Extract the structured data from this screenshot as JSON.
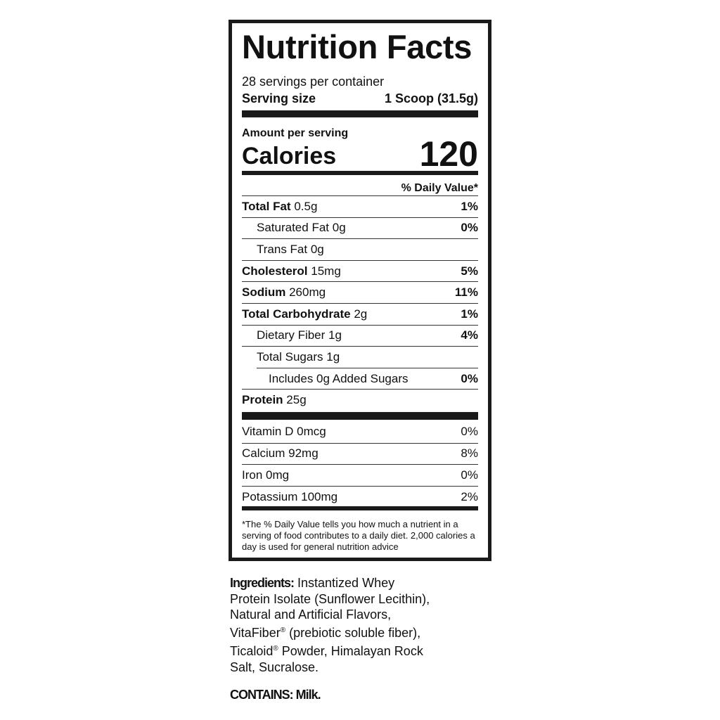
{
  "label": {
    "title": "Nutrition Facts",
    "servings_per_container": "28 servings per container",
    "serving_size_label": "Serving size",
    "serving_size_value": "1 Scoop (31.5g)",
    "amount_per_serving": "Amount per serving",
    "calories_label": "Calories",
    "calories_value": "120",
    "daily_value_header": "% Daily Value*",
    "nutrients": [
      {
        "name": "Total Fat",
        "amount": "0.5g",
        "dv": "1%",
        "bold": true,
        "indent": 0
      },
      {
        "name": "Saturated Fat",
        "amount": "0g",
        "dv": "0%",
        "bold": false,
        "indent": 1
      },
      {
        "name": "Trans Fat",
        "amount": "0g",
        "dv": "",
        "bold": false,
        "indent": 1
      },
      {
        "name": "Cholesterol",
        "amount": "15mg",
        "dv": "5%",
        "bold": true,
        "indent": 0
      },
      {
        "name": "Sodium",
        "amount": "260mg",
        "dv": "11%",
        "bold": true,
        "indent": 0
      },
      {
        "name": "Total Carbohydrate",
        "amount": "2g",
        "dv": "1%",
        "bold": true,
        "indent": 0
      },
      {
        "name": "Dietary Fiber",
        "amount": "1g",
        "dv": "4%",
        "bold": false,
        "indent": 1
      },
      {
        "name": "Total Sugars",
        "amount": "1g",
        "dv": "",
        "bold": false,
        "indent": 1
      },
      {
        "name": "Includes 0g Added Sugars",
        "amount": "",
        "dv": "0%",
        "bold": false,
        "indent": 2
      },
      {
        "name": "Protein",
        "amount": "25g",
        "dv": "",
        "bold": true,
        "indent": 0
      }
    ],
    "vitamins": [
      {
        "name": "Vitamin D",
        "amount": "0mcg",
        "dv": "0%"
      },
      {
        "name": "Calcium",
        "amount": "92mg",
        "dv": "8%"
      },
      {
        "name": "Iron",
        "amount": "0mg",
        "dv": "0%"
      },
      {
        "name": "Potassium",
        "amount": "100mg",
        "dv": "2%"
      }
    ],
    "footnote": "*The % Daily Value tells you how much a nutrient in a serving of food contributes to a daily diet. 2,000 calories a day is used for general nutrition advice"
  },
  "ingredients": {
    "label": "Ingredients:",
    "part1": " Instantized Whey Protein Isolate (Sunflower Lecithin), Natural and Artificial Flavors, VitaFiber",
    "reg1": "®",
    "part2": " (prebiotic soluble fiber), Ticaloid",
    "reg2": "®",
    "part3": " Powder, Himalayan Rock Salt, Sucralose."
  },
  "contains": "CONTAINS: Milk."
}
